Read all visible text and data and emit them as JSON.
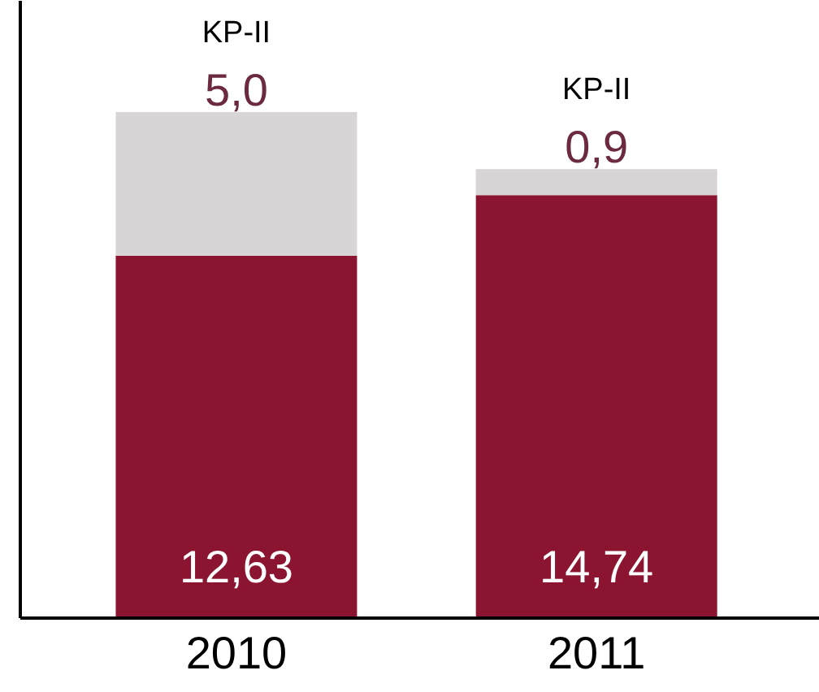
{
  "chart_data": {
    "type": "bar",
    "stacked": true,
    "categories": [
      "2010",
      "2011"
    ],
    "grid": false,
    "series": [
      {
        "color": "#8b1430",
        "values": [
          12.63,
          14.74
        ],
        "value_labels": [
          "12,63",
          "14,74"
        ]
      },
      {
        "name": "KP-II",
        "color": "#d9d4d6",
        "values": [
          5.0,
          0.9
        ],
        "value_labels": [
          "5,0",
          "0,9"
        ]
      }
    ]
  }
}
